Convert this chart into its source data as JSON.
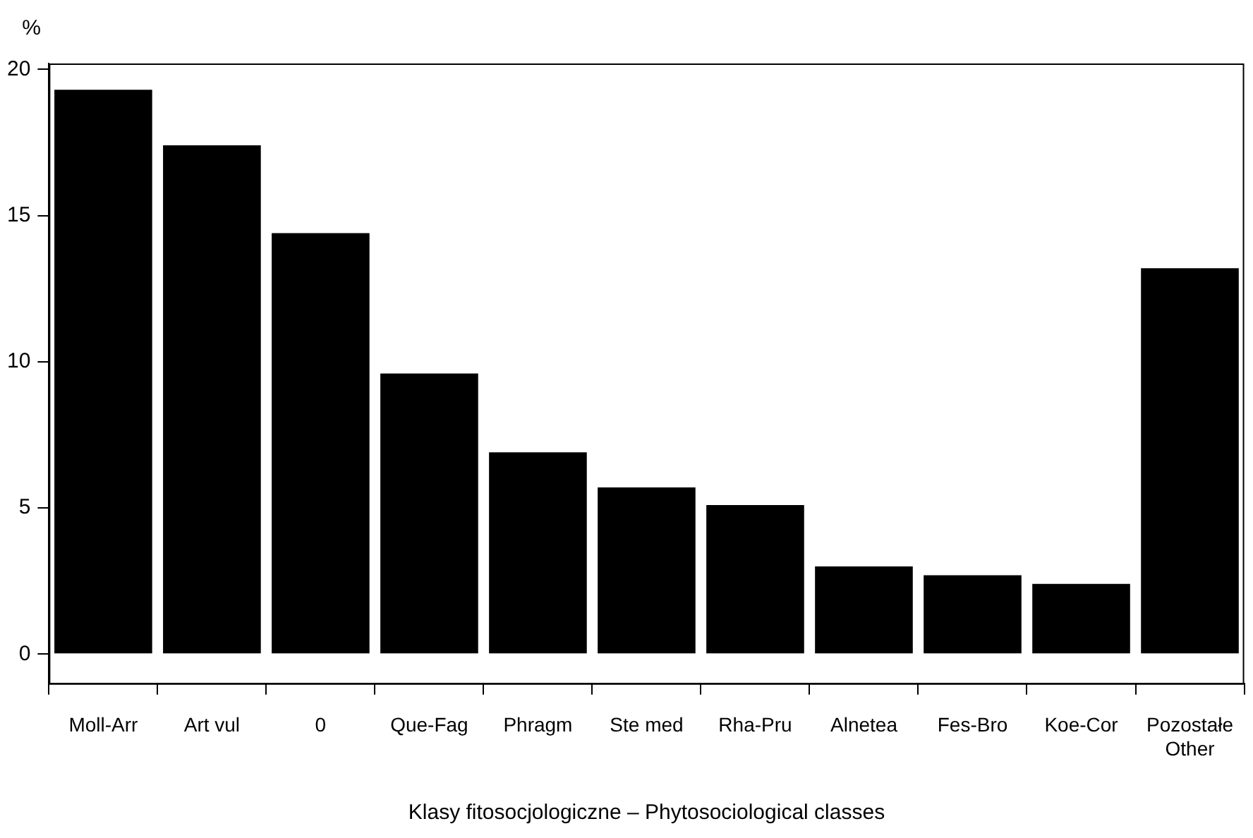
{
  "chart_data": {
    "type": "bar",
    "xlabel": "Klasy fitosocjologiczne – Phytosociological classes",
    "ylabel": "%",
    "categories": [
      "Moll-Arr",
      "Art vul",
      "0",
      "Que-Fag",
      "Phragm",
      "Ste med",
      "Rha-Pru",
      "Alnetea",
      "Fes-Bro",
      "Koe-Cor",
      "Pozostałe\nOther"
    ],
    "values": [
      19.3,
      17.4,
      14.4,
      9.6,
      6.9,
      5.7,
      5.1,
      3.0,
      2.7,
      2.4,
      13.2
    ],
    "color": "#000000",
    "ylim": [
      -1,
      20.2
    ],
    "yticks": [
      0,
      5,
      10,
      15,
      20
    ],
    "grid": false,
    "legend": false
  }
}
